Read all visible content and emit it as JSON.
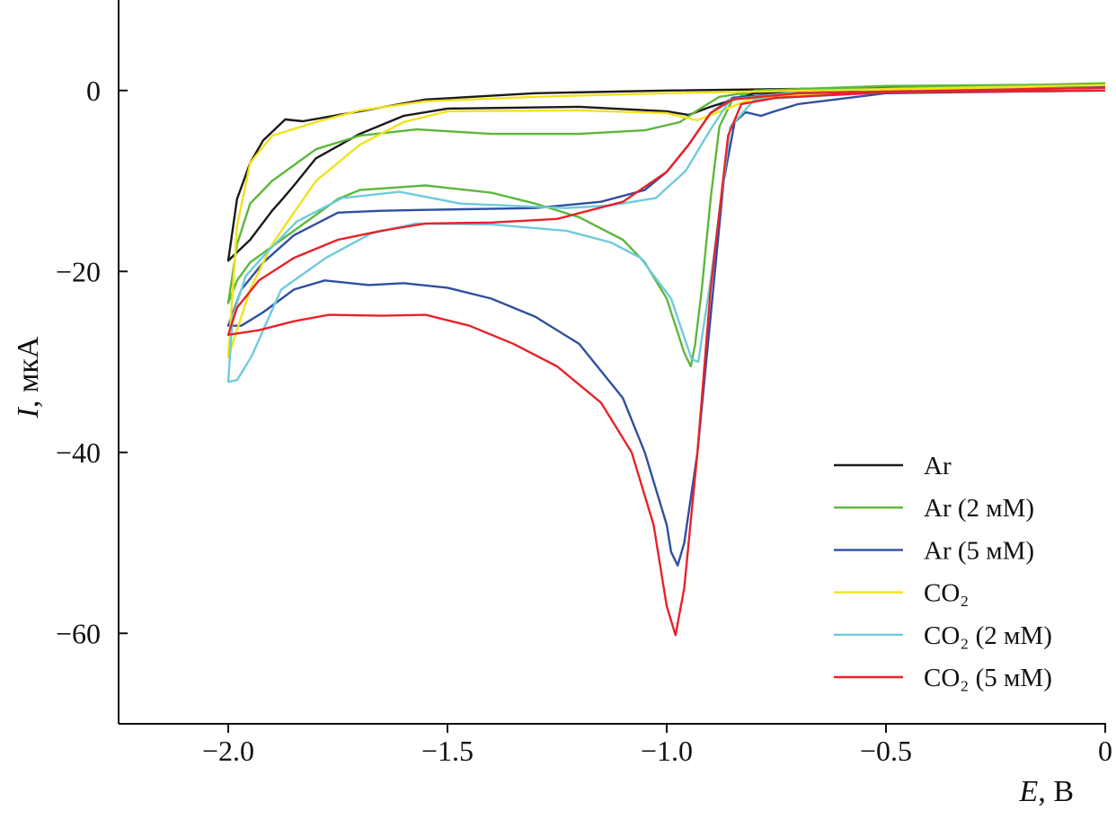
{
  "chart_data": {
    "type": "line",
    "title": "",
    "xlabel": {
      "symbol": "E",
      "unit": ", В"
    },
    "ylabel": {
      "symbol": "I",
      "unit": ", мкА"
    },
    "xlim": [
      -2.25,
      0
    ],
    "ylim": [
      -70,
      10
    ],
    "xticks": [
      -2.0,
      -1.5,
      -1.0,
      -0.5,
      0
    ],
    "xtick_labels": [
      "−2.0",
      "−1.5",
      "−1.0",
      "−0.5",
      "0"
    ],
    "yticks": [
      0,
      -20,
      -40,
      -60
    ],
    "ytick_labels": [
      "0",
      "−20",
      "−40",
      "−60"
    ],
    "grid": false,
    "legend_placement": "bottom-right",
    "series": [
      {
        "name": "Ar",
        "color": "#1a1a1a",
        "points": [
          [
            0,
            0.5
          ],
          [
            -0.5,
            0.3
          ],
          [
            -0.8,
            -0.3
          ],
          [
            -0.9,
            -1.8
          ],
          [
            -0.95,
            -2.7
          ],
          [
            -1.0,
            -2.3
          ],
          [
            -1.2,
            -1.8
          ],
          [
            -1.5,
            -2.0
          ],
          [
            -1.6,
            -2.8
          ],
          [
            -1.7,
            -4.8
          ],
          [
            -1.8,
            -7.5
          ],
          [
            -1.85,
            -10.5
          ],
          [
            -1.88,
            -12.2
          ],
          [
            -1.9,
            -13.3
          ],
          [
            -1.95,
            -16.5
          ],
          [
            -2.0,
            -18.8
          ],
          [
            -1.98,
            -12
          ],
          [
            -1.95,
            -8
          ],
          [
            -1.92,
            -5.5
          ],
          [
            -1.87,
            -3.2
          ],
          [
            -1.83,
            -3.4
          ],
          [
            -1.7,
            -2.3
          ],
          [
            -1.55,
            -1.0
          ],
          [
            -1.3,
            -0.3
          ],
          [
            -1.0,
            0
          ],
          [
            -0.5,
            0.3
          ],
          [
            0,
            0.5
          ]
        ]
      },
      {
        "name": "Ar (2 мМ)",
        "color": "#5cb83c",
        "points": [
          [
            0,
            0.7
          ],
          [
            -0.5,
            0.5
          ],
          [
            -0.8,
            0
          ],
          [
            -0.85,
            -1
          ],
          [
            -0.88,
            -4
          ],
          [
            -0.9,
            -12
          ],
          [
            -0.92,
            -22
          ],
          [
            -0.935,
            -28
          ],
          [
            -0.945,
            -30.5
          ],
          [
            -0.96,
            -29
          ],
          [
            -1.0,
            -23
          ],
          [
            -1.05,
            -19
          ],
          [
            -1.1,
            -16.5
          ],
          [
            -1.2,
            -14
          ],
          [
            -1.3,
            -12.5
          ],
          [
            -1.4,
            -11.3
          ],
          [
            -1.55,
            -10.5
          ],
          [
            -1.7,
            -11
          ],
          [
            -1.75,
            -12
          ],
          [
            -1.85,
            -15.5
          ],
          [
            -1.95,
            -19
          ],
          [
            -1.98,
            -21
          ],
          [
            -2.0,
            -23.5
          ],
          [
            -1.98,
            -17
          ],
          [
            -1.95,
            -12.5
          ],
          [
            -1.9,
            -10
          ],
          [
            -1.8,
            -6.5
          ],
          [
            -1.7,
            -5
          ],
          [
            -1.57,
            -4.3
          ],
          [
            -1.4,
            -4.8
          ],
          [
            -1.2,
            -4.8
          ],
          [
            -1.05,
            -4.4
          ],
          [
            -0.97,
            -3.5
          ],
          [
            -0.93,
            -2.2
          ],
          [
            -0.88,
            -0.7
          ],
          [
            -0.8,
            -0.1
          ],
          [
            0,
            0.8
          ]
        ]
      },
      {
        "name": "Ar (5 мМ)",
        "color": "#2f4fa0",
        "points": [
          [
            0,
            0
          ],
          [
            -0.5,
            -0.3
          ],
          [
            -0.7,
            -1.5
          ],
          [
            -0.76,
            -2.4
          ],
          [
            -0.785,
            -2.8
          ],
          [
            -0.82,
            -2.4
          ],
          [
            -0.845,
            -3.5
          ],
          [
            -0.87,
            -10
          ],
          [
            -0.9,
            -25
          ],
          [
            -0.93,
            -40
          ],
          [
            -0.96,
            -50
          ],
          [
            -0.975,
            -52.5
          ],
          [
            -0.99,
            -51
          ],
          [
            -1.0,
            -48
          ],
          [
            -1.05,
            -40
          ],
          [
            -1.1,
            -34
          ],
          [
            -1.2,
            -28
          ],
          [
            -1.3,
            -25
          ],
          [
            -1.4,
            -23
          ],
          [
            -1.5,
            -21.8
          ],
          [
            -1.6,
            -21.3
          ],
          [
            -1.68,
            -21.5
          ],
          [
            -1.78,
            -21
          ],
          [
            -1.85,
            -22
          ],
          [
            -1.92,
            -24.5
          ],
          [
            -1.97,
            -26
          ],
          [
            -2.0,
            -26
          ],
          [
            -1.97,
            -22
          ],
          [
            -1.92,
            -19
          ],
          [
            -1.85,
            -16
          ],
          [
            -1.75,
            -13.5
          ],
          [
            -1.65,
            -13.3
          ],
          [
            -1.55,
            -13.2
          ],
          [
            -1.3,
            -13
          ],
          [
            -1.15,
            -12.3
          ],
          [
            -1.05,
            -11
          ],
          [
            -1.0,
            -9
          ],
          [
            -0.95,
            -6
          ],
          [
            -0.9,
            -2.5
          ],
          [
            -0.85,
            -0.8
          ],
          [
            -0.7,
            -0.2
          ],
          [
            0,
            0.5
          ]
        ]
      },
      {
        "name": "CO₂",
        "color": "#f2e21a",
        "points": [
          [
            0,
            0.3
          ],
          [
            -0.5,
            0
          ],
          [
            -0.8,
            -0.8
          ],
          [
            -0.93,
            -3.3
          ],
          [
            -1.0,
            -2.5
          ],
          [
            -1.2,
            -2.2
          ],
          [
            -1.5,
            -2.3
          ],
          [
            -1.6,
            -3.5
          ],
          [
            -1.7,
            -6
          ],
          [
            -1.8,
            -10
          ],
          [
            -1.9,
            -17
          ],
          [
            -1.95,
            -22
          ],
          [
            -2.0,
            -29.5
          ],
          [
            -1.98,
            -15
          ],
          [
            -1.95,
            -8
          ],
          [
            -1.9,
            -5
          ],
          [
            -1.8,
            -3.5
          ],
          [
            -1.7,
            -2.2
          ],
          [
            -1.55,
            -1.2
          ],
          [
            -1.3,
            -0.7
          ],
          [
            -1.0,
            -0.3
          ],
          [
            0,
            0.6
          ]
        ]
      },
      {
        "name": "CO₂ (2 мМ)",
        "color": "#6fcbdc",
        "points": [
          [
            0,
            0
          ],
          [
            -0.5,
            -0.2
          ],
          [
            -0.8,
            -1
          ],
          [
            -0.855,
            -4
          ],
          [
            -0.9,
            -21
          ],
          [
            -0.928,
            -30
          ],
          [
            -0.943,
            -29.7
          ],
          [
            -0.99,
            -23
          ],
          [
            -1.06,
            -18.5
          ],
          [
            -1.127,
            -16.8
          ],
          [
            -1.23,
            -15.5
          ],
          [
            -1.4,
            -14.8
          ],
          [
            -1.572,
            -14.7
          ],
          [
            -1.674,
            -15.8
          ],
          [
            -1.777,
            -18.5
          ],
          [
            -1.879,
            -22
          ],
          [
            -1.947,
            -29.4
          ],
          [
            -1.98,
            -32
          ],
          [
            -2.0,
            -32.2
          ],
          [
            -1.99,
            -25
          ],
          [
            -1.96,
            -20.5
          ],
          [
            -1.91,
            -17.8
          ],
          [
            -1.844,
            -14.5
          ],
          [
            -1.74,
            -11.9
          ],
          [
            -1.61,
            -11.2
          ],
          [
            -1.47,
            -12.5
          ],
          [
            -1.23,
            -13
          ],
          [
            -1.127,
            -12.7
          ],
          [
            -1.025,
            -11.9
          ],
          [
            -0.957,
            -8.9
          ],
          [
            -0.9,
            -4.3
          ],
          [
            -0.855,
            -1
          ],
          [
            -0.72,
            -0.3
          ],
          [
            0,
            0.3
          ]
        ]
      },
      {
        "name": "CO₂ (5 мМ)",
        "color": "#e8222a",
        "points": [
          [
            0,
            0
          ],
          [
            -0.5,
            -0.2
          ],
          [
            -0.75,
            -0.8
          ],
          [
            -0.83,
            -1.5
          ],
          [
            -0.86,
            -5
          ],
          [
            -0.9,
            -22
          ],
          [
            -0.93,
            -40
          ],
          [
            -0.96,
            -55
          ],
          [
            -0.98,
            -60.2
          ],
          [
            -1.0,
            -57
          ],
          [
            -1.03,
            -48
          ],
          [
            -1.08,
            -40
          ],
          [
            -1.15,
            -34.5
          ],
          [
            -1.25,
            -30.5
          ],
          [
            -1.35,
            -28
          ],
          [
            -1.45,
            -26
          ],
          [
            -1.55,
            -24.8
          ],
          [
            -1.65,
            -24.9
          ],
          [
            -1.77,
            -24.8
          ],
          [
            -1.85,
            -25.5
          ],
          [
            -1.93,
            -26.5
          ],
          [
            -2.0,
            -27
          ],
          [
            -1.98,
            -24
          ],
          [
            -1.93,
            -21
          ],
          [
            -1.85,
            -18.5
          ],
          [
            -1.75,
            -16.5
          ],
          [
            -1.65,
            -15.5
          ],
          [
            -1.55,
            -14.7
          ],
          [
            -1.4,
            -14.6
          ],
          [
            -1.25,
            -14.2
          ],
          [
            -1.1,
            -12.3
          ],
          [
            -1.0,
            -9
          ],
          [
            -0.95,
            -6
          ],
          [
            -0.9,
            -2.5
          ],
          [
            -0.85,
            -1
          ],
          [
            -0.7,
            -0.3
          ],
          [
            0,
            0.3
          ]
        ]
      }
    ]
  }
}
